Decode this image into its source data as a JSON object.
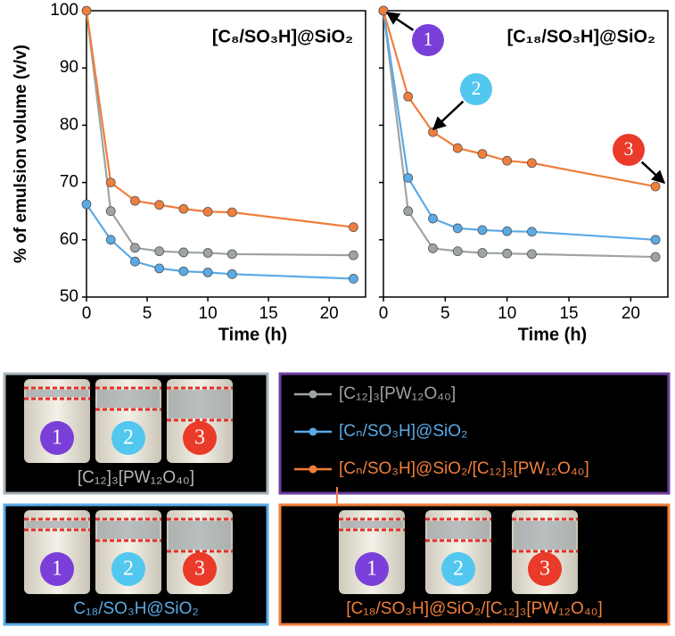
{
  "chart_data": [
    {
      "type": "line",
      "title": "[C₈/SO₃H]@SiO₂",
      "xlabel": "Time (h)",
      "ylabel": "% of emulsion volume (v/v)",
      "x": [
        0,
        2,
        4,
        6,
        8,
        10,
        12,
        22
      ],
      "xlim": [
        0,
        23
      ],
      "xticks": [
        0,
        5,
        10,
        15,
        20
      ],
      "ylim": [
        50,
        100
      ],
      "yticks": [
        50,
        60,
        70,
        80,
        90,
        100
      ],
      "series": [
        {
          "name": "[C₁₂]₃[PW₁₂O₄₀]",
          "color": "#9ea3a6",
          "values": [
            100,
            65,
            58.6,
            58,
            57.8,
            57.7,
            57.5,
            57.3
          ]
        },
        {
          "name": "[Cₙ/SO₃H]@SiO₂",
          "color": "#5aaae6",
          "values": [
            66.2,
            60,
            56.2,
            55,
            54.5,
            54.3,
            54,
            53.2
          ]
        },
        {
          "name": "[Cₙ/SO₃H]@SiO₂/[C₁₂]₃[PW₁₂O₄₀]",
          "color": "#f07e3c",
          "values": [
            100,
            70,
            66.8,
            66.1,
            65.4,
            64.9,
            64.8,
            62.2
          ]
        }
      ]
    },
    {
      "type": "line",
      "title": "[C₁₈/SO₃H]@SiO₂",
      "xlabel": "Time (h)",
      "x": [
        0,
        2,
        4,
        6,
        8,
        10,
        12,
        22
      ],
      "xlim": [
        0,
        23
      ],
      "xticks": [
        0,
        5,
        10,
        15,
        20
      ],
      "ylim": [
        50,
        100
      ],
      "yticks": [
        50,
        60,
        70,
        80,
        90,
        100
      ],
      "series": [
        {
          "color": "#9ea3a6",
          "values": [
            100,
            65,
            58.5,
            58,
            57.7,
            57.6,
            57.5,
            57
          ]
        },
        {
          "color": "#5aaae6",
          "values": [
            100,
            70.8,
            63.7,
            62,
            61.7,
            61.5,
            61.4,
            60
          ]
        },
        {
          "color": "#f07e3c",
          "values": [
            100,
            85,
            78.8,
            76,
            75,
            73.8,
            73.4,
            69.3
          ]
        }
      ],
      "annotations": [
        "1",
        "2",
        "3"
      ]
    }
  ],
  "panels": [
    {
      "label": "[C₁₂]₃[PW₁₂O₄₀]",
      "vials": [
        "1",
        "2",
        "3"
      ]
    },
    {
      "label": "C₁₈/SO₃H@SiO₂",
      "vials": [
        "1",
        "2",
        "3"
      ]
    },
    {
      "label": "[C₁₈/SO₃H]@SiO₂/[C₁₂]₃[PW₁₂O₄₀]",
      "vials": [
        "1",
        "2",
        "3"
      ]
    }
  ]
}
